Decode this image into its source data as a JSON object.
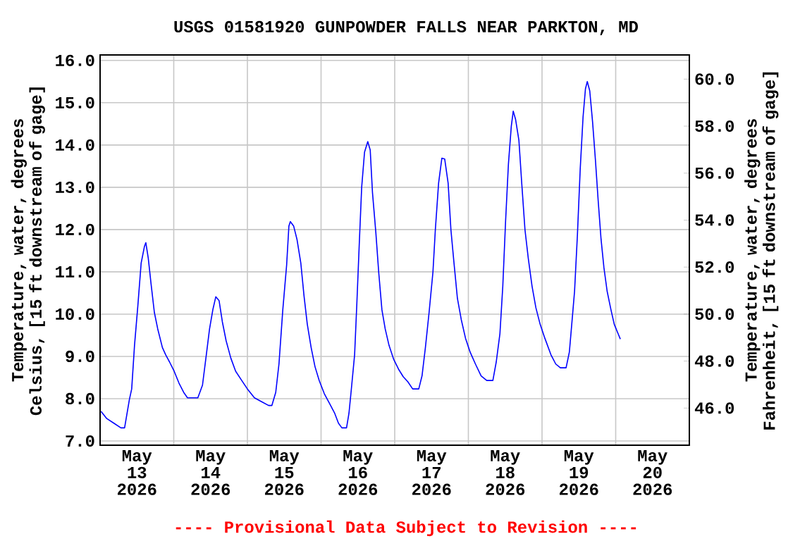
{
  "chart_data": {
    "type": "line",
    "title": "USGS 01581920 GUNPOWDER FALLS NEAR PARKTON, MD",
    "ylabel": "Temperature, water, degrees Celsius, [15 ft downstream of gage]",
    "y2label": "Temperature, water, degrees Fahrenheit, [15 ft downstream of gage]",
    "annotations": [
      "---- Provisional Data Subject to Revision ----"
    ],
    "color": "#0000ff",
    "grid": true,
    "xlim": [
      "2026-05-12T12:00",
      "2026-05-20T12:00"
    ],
    "xticks": [
      {
        "value": "2026-05-13",
        "label": "May 13 2026"
      },
      {
        "value": "2026-05-14",
        "label": "May 14 2026"
      },
      {
        "value": "2026-05-15",
        "label": "May 15 2026"
      },
      {
        "value": "2026-05-16",
        "label": "May 16 2026"
      },
      {
        "value": "2026-05-17",
        "label": "May 17 2026"
      },
      {
        "value": "2026-05-18",
        "label": "May 18 2026"
      },
      {
        "value": "2026-05-19",
        "label": "May 19 2026"
      },
      {
        "value": "2026-05-20",
        "label": "May 20 2026"
      },
      {
        "value": "2026-05-13T12:00",
        "label": null
      },
      {
        "value": "2026-05-14T12:00",
        "label": null
      },
      {
        "value": "2026-05-15T12:00",
        "label": null
      },
      {
        "value": "2026-05-16T12:00",
        "label": null
      },
      {
        "value": "2026-05-17T12:00",
        "label": null
      },
      {
        "value": "2026-05-18T12:00",
        "label": null
      },
      {
        "value": "2026-05-19T12:00",
        "label": null
      }
    ],
    "ylim": [
      6.9,
      16.13
    ],
    "yticks": [
      {
        "value": 7,
        "label": "7.0"
      },
      {
        "value": 8,
        "label": "8.0"
      },
      {
        "value": 9,
        "label": "9.0"
      },
      {
        "value": 10,
        "label": "10.0"
      },
      {
        "value": 11,
        "label": "11.0"
      },
      {
        "value": 12,
        "label": "12.0"
      },
      {
        "value": 13,
        "label": "13.0"
      },
      {
        "value": 14,
        "label": "14.0"
      },
      {
        "value": 15,
        "label": "15.0"
      },
      {
        "value": 16,
        "label": "16.0"
      }
    ],
    "y2lim": [
      44.42,
      61.03
    ],
    "y2ticks": [
      {
        "value": 46,
        "label": "46.0"
      },
      {
        "value": 48,
        "label": "48.0"
      },
      {
        "value": 50,
        "label": "50.0"
      },
      {
        "value": 52,
        "label": "52.0"
      },
      {
        "value": 54,
        "label": "54.0"
      },
      {
        "value": 56,
        "label": "56.0"
      },
      {
        "value": 58,
        "label": "58.0"
      },
      {
        "value": 60,
        "label": "60.0"
      }
    ],
    "x": [
      "2026-05-12T12:19",
      "2026-05-12T14:10",
      "2026-05-12T16:29",
      "2026-05-12T18:47",
      "2026-05-12T19:59",
      "2026-05-12T21:33",
      "2026-05-12T22:18",
      "2026-05-12T23:13",
      "2026-05-13T00:19",
      "2026-05-13T01:23",
      "2026-05-13T02:27",
      "2026-05-13T02:54",
      "2026-05-13T03:42",
      "2026-05-13T04:37",
      "2026-05-13T05:41",
      "2026-05-13T06:47",
      "2026-05-13T08:18",
      "2026-05-13T09:22",
      "2026-05-13T10:37",
      "2026-05-13T12:08",
      "2026-05-13T13:42",
      "2026-05-13T15:14",
      "2026-05-13T16:29",
      "2026-05-13T19:51",
      "2026-05-13T21:22",
      "2026-05-13T22:37",
      "2026-05-13T23:40",
      "2026-05-14T00:47",
      "2026-05-14T01:42",
      "2026-05-14T02:46",
      "2026-05-14T03:50",
      "2026-05-14T05:04",
      "2026-05-14T06:36",
      "2026-05-14T08:10",
      "2026-05-14T10:09",
      "2026-05-14T12:00",
      "2026-05-14T14:18",
      "2026-05-14T16:37",
      "2026-05-14T18:55",
      "2026-05-14T19:59",
      "2026-05-14T21:14",
      "2026-05-14T22:17",
      "2026-05-14T23:32",
      "2026-05-15T00:47",
      "2026-05-15T01:31",
      "2026-05-15T01:59",
      "2026-05-15T03:05",
      "2026-05-15T04:09",
      "2026-05-15T05:24",
      "2026-05-15T06:27",
      "2026-05-15T07:31",
      "2026-05-15T08:46",
      "2026-05-15T10:01",
      "2026-05-15T11:24",
      "2026-05-15T13:03",
      "2026-05-15T14:54",
      "2026-05-15T16:28",
      "2026-05-15T17:40",
      "2026-05-15T18:47",
      "2026-05-15T20:18",
      "2026-05-15T21:05",
      "2026-05-15T21:50",
      "2026-05-15T22:56",
      "2026-05-15T23:40",
      "2026-05-16T00:27",
      "2026-05-16T01:14",
      "2026-05-16T02:10",
      "2026-05-16T03:13",
      "2026-05-16T04:01",
      "2026-05-16T04:45",
      "2026-05-16T05:51",
      "2026-05-16T06:47",
      "2026-05-16T07:50",
      "2026-05-16T08:54",
      "2026-05-16T10:09",
      "2026-05-16T11:40",
      "2026-05-16T13:14",
      "2026-05-16T14:46",
      "2026-05-16T16:17",
      "2026-05-16T17:51",
      "2026-05-16T19:50",
      "2026-05-16T20:54",
      "2026-05-16T22:00",
      "2026-05-16T23:12",
      "2026-05-17T00:27",
      "2026-05-17T01:14",
      "2026-05-17T02:18",
      "2026-05-17T03:22",
      "2026-05-17T04:17",
      "2026-05-17T05:24",
      "2026-05-17T06:19",
      "2026-05-17T07:14",
      "2026-05-17T08:26",
      "2026-05-17T09:41",
      "2026-05-17T11:04",
      "2026-05-17T12:35",
      "2026-05-17T14:18",
      "2026-05-17T16:09",
      "2026-05-17T17:59",
      "2026-05-17T19:59",
      "2026-05-17T21:05",
      "2026-05-17T22:17",
      "2026-05-17T23:13",
      "2026-05-18T00:08",
      "2026-05-18T01:03",
      "2026-05-18T01:59",
      "2026-05-18T02:37",
      "2026-05-18T03:22",
      "2026-05-18T04:28",
      "2026-05-18T05:23",
      "2026-05-18T06:27",
      "2026-05-18T07:31",
      "2026-05-18T08:45",
      "2026-05-18T10:00",
      "2026-05-18T11:23",
      "2026-05-18T12:55",
      "2026-05-18T14:54",
      "2026-05-18T16:28",
      "2026-05-18T17:59",
      "2026-05-18T19:50",
      "2026-05-18T20:54",
      "2026-05-18T21:41",
      "2026-05-18T22:36",
      "2026-05-18T23:32",
      "2026-05-19T00:27",
      "2026-05-19T01:22",
      "2026-05-19T02:09",
      "2026-05-19T02:45",
      "2026-05-19T03:33",
      "2026-05-19T04:28",
      "2026-05-19T05:23",
      "2026-05-19T06:19",
      "2026-05-19T07:14",
      "2026-05-19T08:10",
      "2026-05-19T09:13",
      "2026-05-19T10:28",
      "2026-05-19T11:32",
      "2026-05-19T12:46",
      "2026-05-19T13:31"
    ],
    "values": [
      7.7,
      7.53,
      7.42,
      7.31,
      7.31,
      7.98,
      8.23,
      9.26,
      10.21,
      11.21,
      11.6,
      11.69,
      11.32,
      10.71,
      10.04,
      9.65,
      9.21,
      9.04,
      8.87,
      8.65,
      8.37,
      8.15,
      8.02,
      8.02,
      8.32,
      9.04,
      9.65,
      10.12,
      10.41,
      10.32,
      9.82,
      9.37,
      8.96,
      8.65,
      8.43,
      8.23,
      8.02,
      7.93,
      7.84,
      7.84,
      8.15,
      8.82,
      10.1,
      11.16,
      12.08,
      12.19,
      12.08,
      11.77,
      11.21,
      10.43,
      9.76,
      9.21,
      8.76,
      8.43,
      8.12,
      7.87,
      7.65,
      7.42,
      7.31,
      7.31,
      7.65,
      8.2,
      9.04,
      10.26,
      11.66,
      13.0,
      13.83,
      14.08,
      13.88,
      12.88,
      11.93,
      10.99,
      10.1,
      9.65,
      9.26,
      8.93,
      8.7,
      8.52,
      8.4,
      8.23,
      8.23,
      8.54,
      9.21,
      10.04,
      10.99,
      11.99,
      13.1,
      13.69,
      13.67,
      13.1,
      11.99,
      11.27,
      10.37,
      9.87,
      9.43,
      9.1,
      8.82,
      8.54,
      8.43,
      8.43,
      8.87,
      9.54,
      10.66,
      12.21,
      13.55,
      14.44,
      14.8,
      14.61,
      14.11,
      13.1,
      11.99,
      11.32,
      10.66,
      10.15,
      9.76,
      9.43,
      9.04,
      8.82,
      8.73,
      8.73,
      9.1,
      9.76,
      10.54,
      11.88,
      13.44,
      14.66,
      15.33,
      15.5,
      15.28,
      14.55,
      13.66,
      12.66,
      11.77,
      11.1,
      10.54,
      10.1,
      9.76,
      9.54,
      9.41
    ]
  }
}
